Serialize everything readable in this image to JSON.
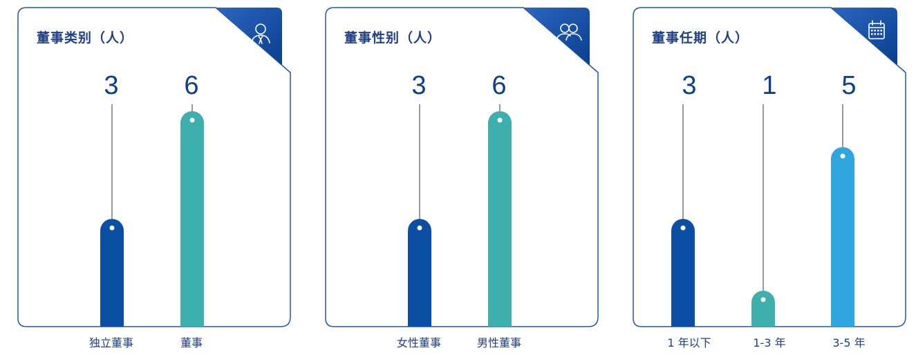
{
  "colors": {
    "border": "#2554a5",
    "corner_dark": "#0b3f8e",
    "corner_light": "#2a66c0",
    "connector": "#333333",
    "title": "#1e3f84"
  },
  "cards": [
    {
      "title": "董事类别（人）",
      "icon": "user-tie-icon"
    },
    {
      "title": "董事性别（人）",
      "icon": "users-icon"
    },
    {
      "title": "董事任期（人）",
      "icon": "calendar-icon"
    }
  ],
  "chart_data": [
    {
      "type": "bar",
      "title": "董事类别（人）",
      "categories": [
        "独立董事",
        "董事"
      ],
      "values": [
        3,
        6
      ],
      "value_labels": [
        "3",
        "6"
      ],
      "colors": [
        "#0a4fa3",
        "#3db0ad"
      ],
      "ylim": [
        0,
        7.3
      ],
      "grid": false
    },
    {
      "type": "bar",
      "title": "董事性别（人）",
      "categories": [
        "女性董事",
        "男性董事"
      ],
      "values": [
        3,
        6
      ],
      "value_labels": [
        "3",
        "6"
      ],
      "colors": [
        "#0a4fa3",
        "#3db0ad"
      ],
      "ylim": [
        0,
        7.3
      ],
      "grid": false
    },
    {
      "type": "bar",
      "title": "董事任期（人）",
      "categories": [
        "1 年以下",
        "1-3 年",
        "3-5 年"
      ],
      "values": [
        3,
        1,
        5
      ],
      "value_labels": [
        "3",
        "1",
        "5"
      ],
      "colors": [
        "#0a4fa3",
        "#3db0ad",
        "#2fa6df"
      ],
      "ylim": [
        0,
        7.3
      ],
      "grid": false
    }
  ]
}
